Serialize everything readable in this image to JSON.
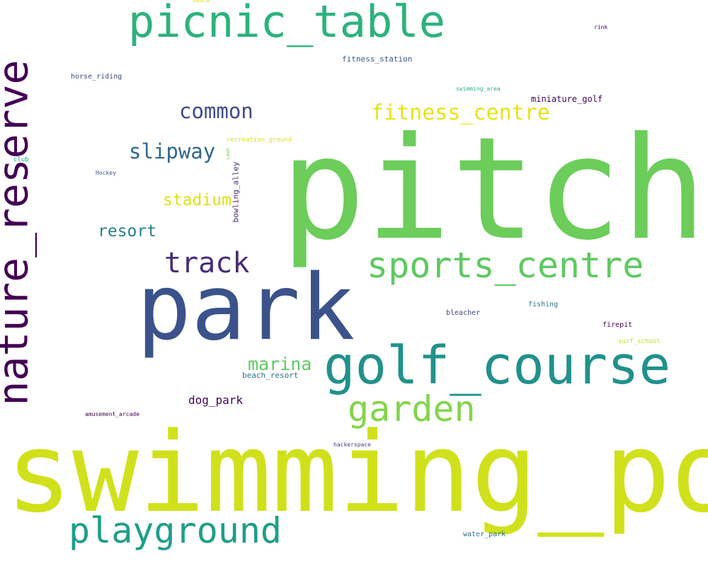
{
  "words": [
    {
      "id": "pitch",
      "text": "pitch",
      "color": "#6ccd5a"
    },
    {
      "id": "swimming_pool",
      "text": "swimming_pool",
      "color": "#d0e11c"
    },
    {
      "id": "park",
      "text": "park",
      "color": "#3b528b"
    },
    {
      "id": "nature_reserve",
      "text": "nature_reserve",
      "color": "#440154"
    },
    {
      "id": "golf_course",
      "text": "golf_course",
      "color": "#21918c"
    },
    {
      "id": "picnic_table",
      "text": "picnic_table",
      "color": "#2db27d"
    },
    {
      "id": "sports_centre",
      "text": "sports_centre",
      "color": "#5ec962"
    },
    {
      "id": "playground",
      "text": "playground",
      "color": "#1f9e89"
    },
    {
      "id": "garden",
      "text": "garden",
      "color": "#84d44b"
    },
    {
      "id": "track",
      "text": "track",
      "color": "#472d7b"
    },
    {
      "id": "fitness_centre",
      "text": "fitness_centre",
      "color": "#e5e419"
    },
    {
      "id": "common",
      "text": "common",
      "color": "#3e4a89"
    },
    {
      "id": "slipway",
      "text": "slipway",
      "color": "#31688e"
    },
    {
      "id": "marina",
      "text": "marina",
      "color": "#5ec962"
    },
    {
      "id": "stadium",
      "text": "stadium",
      "color": "#dde318"
    },
    {
      "id": "resort",
      "text": "resort",
      "color": "#26828e"
    },
    {
      "id": "dog_park",
      "text": "dog_park",
      "color": "#440154"
    },
    {
      "id": "miniature_golf",
      "text": "miniature_golf",
      "color": "#440154"
    },
    {
      "id": "fitness_station",
      "text": "fitness_station",
      "color": "#39568c"
    },
    {
      "id": "beach_resort",
      "text": "beach_resort",
      "color": "#2c728e"
    },
    {
      "id": "bowling_alley",
      "text": "bowling_alley",
      "color": "#482878"
    },
    {
      "id": "horse_riding",
      "text": "horse_riding",
      "color": "#3e4a89"
    },
    {
      "id": "bleacher",
      "text": "bleacher",
      "color": "#404387"
    },
    {
      "id": "fishing",
      "text": "fishing",
      "color": "#2a788e"
    },
    {
      "id": "firepit",
      "text": "firepit",
      "color": "#440154"
    },
    {
      "id": "water_park",
      "text": "water_park",
      "color": "#2c728e"
    },
    {
      "id": "surf_school",
      "text": "surf_school",
      "color": "#c2df23"
    },
    {
      "id": "recreation_ground",
      "text": "recreation_ground",
      "color": "#dde318"
    },
    {
      "id": "club",
      "text": "club",
      "color": "#22a884"
    },
    {
      "id": "swimming_area",
      "text": "swimming_area",
      "color": "#2ab07f"
    },
    {
      "id": "amusement_arcade",
      "text": "amusement_arcade",
      "color": "#440154"
    },
    {
      "id": "hackerspace",
      "text": "hackerspace",
      "color": "#433e85"
    },
    {
      "id": "hockey",
      "text": "Hockey",
      "color": "#3b528b"
    },
    {
      "id": "rink",
      "text": "rink",
      "color": "#440154"
    },
    {
      "id": "lawn",
      "text": "Lawn",
      "color": "#7ad151"
    },
    {
      "id": "sauna",
      "text": "sauna",
      "color": "#d8e219"
    }
  ]
}
